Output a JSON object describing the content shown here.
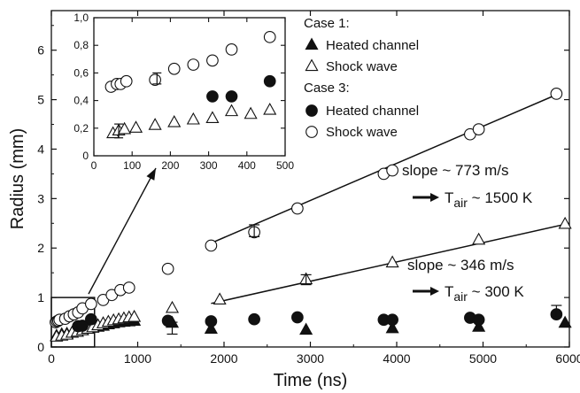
{
  "chart_data": {
    "type": "scatter",
    "xlabel": "Time (ns)",
    "ylabel": "Radius (mm)",
    "xlim": [
      0,
      6000
    ],
    "ylim": [
      0,
      6.8
    ],
    "xticks": [
      "0",
      "1000",
      "2000",
      "3000",
      "4000",
      "5000",
      "6000"
    ],
    "yticks": [
      "0",
      "1",
      "2",
      "3",
      "4",
      "5",
      "6"
    ],
    "grid": false,
    "legend_placement": "top-right",
    "legend": {
      "case1_title": "Case 1:",
      "case3_title": "Case 3:"
    },
    "series": [
      {
        "name": "Heated channel",
        "group": "Case 1:",
        "marker": "filled-triangle",
        "x": [
          60,
          120,
          180,
          240,
          300,
          360,
          420,
          480,
          540,
          600,
          660,
          720,
          780,
          840,
          900,
          960,
          1400,
          1850,
          2950,
          3950,
          4950,
          5950
        ],
        "y": [
          0.22,
          0.25,
          0.26,
          0.28,
          0.3,
          0.33,
          0.36,
          0.38,
          0.4,
          0.42,
          0.45,
          0.47,
          0.49,
          0.5,
          0.51,
          0.52,
          0.48,
          0.36,
          0.34,
          0.37,
          0.4,
          0.48
        ],
        "error_bars": [
          {
            "x": 1400,
            "y": 0.38,
            "err": 0.12
          }
        ]
      },
      {
        "name": "Shock wave",
        "group": "Case 1:",
        "marker": "open-triangle",
        "x": [
          60,
          120,
          180,
          240,
          300,
          360,
          420,
          480,
          540,
          600,
          660,
          720,
          780,
          840,
          900,
          960,
          1400,
          1950,
          2950,
          3950,
          4950,
          5950
        ],
        "y": [
          0.2,
          0.22,
          0.24,
          0.28,
          0.3,
          0.33,
          0.36,
          0.39,
          0.43,
          0.47,
          0.5,
          0.53,
          0.55,
          0.57,
          0.59,
          0.6,
          0.78,
          0.95,
          1.36,
          1.7,
          2.16,
          2.48
        ],
        "error_bars": [
          {
            "x": 2950,
            "y": 1.36,
            "err": 0.1
          }
        ]
      },
      {
        "name": "Heated channel",
        "group": "Case 3:",
        "marker": "filled-circle",
        "x": [
          310,
          360,
          460,
          1350,
          1850,
          2350,
          2850,
          3850,
          3950,
          4850,
          4950,
          5850
        ],
        "y": [
          0.42,
          0.43,
          0.56,
          0.53,
          0.52,
          0.56,
          0.6,
          0.55,
          0.55,
          0.59,
          0.55,
          0.66
        ],
        "error_bars": [
          {
            "x": 5850,
            "y": 0.72,
            "err": 0.12
          }
        ]
      },
      {
        "name": "Shock wave",
        "group": "Case 3:",
        "marker": "open-circle",
        "x": [
          50,
          65,
          80,
          95,
          160,
          210,
          260,
          310,
          360,
          460,
          600,
          700,
          800,
          900,
          1350,
          1850,
          2350,
          2850,
          3850,
          3950,
          4850,
          4950,
          5850
        ],
        "y": [
          0.5,
          0.52,
          0.53,
          0.55,
          0.57,
          0.62,
          0.66,
          0.7,
          0.78,
          0.87,
          0.95,
          1.05,
          1.15,
          1.2,
          1.58,
          2.05,
          2.32,
          2.8,
          3.5,
          3.57,
          4.3,
          4.4,
          5.12
        ],
        "error_bars": [
          {
            "x": 2350,
            "y": 2.35,
            "err": 0.12
          }
        ]
      }
    ],
    "fit_lines": [
      {
        "x": [
          1850,
          5850
        ],
        "y": [
          2.1,
          5.1
        ]
      },
      {
        "x": [
          1850,
          6000
        ],
        "y": [
          0.88,
          2.5
        ]
      }
    ],
    "annotations": {
      "slope_upper": "slope ~ 773 m/s",
      "slope_lower": "slope ~ 346 m/s",
      "t_sub": "air",
      "t_var": "T",
      "t_upper_value": " ~ 1500 K",
      "t_lower_value": " ~ 300 K"
    },
    "inset": {
      "xlim": [
        0,
        500
      ],
      "ylim": [
        0,
        1.0
      ],
      "xticks": [
        "0",
        "100",
        "200",
        "300",
        "400",
        "500"
      ],
      "yticks": [
        "0",
        "0,2",
        "0,4",
        "0,6",
        "0,8",
        "1,0"
      ],
      "series": [
        {
          "name": "Shock wave",
          "group": "Case 1:",
          "marker": "open-triangle",
          "x": [
            50,
            65,
            80,
            110,
            160,
            210,
            260,
            310,
            360,
            410,
            460
          ],
          "y": [
            0.16,
            0.18,
            0.19,
            0.2,
            0.22,
            0.24,
            0.26,
            0.27,
            0.32,
            0.3,
            0.33
          ],
          "error_bars": [
            {
              "x": 65,
              "y": 0.18,
              "err": 0.05
            }
          ]
        },
        {
          "name": "Heated channel",
          "group": "Case 3:",
          "marker": "filled-circle",
          "x": [
            310,
            360,
            460
          ],
          "y": [
            0.43,
            0.43,
            0.54
          ],
          "error_bars": []
        },
        {
          "name": "Shock wave",
          "group": "Case 3:",
          "marker": "open-circle",
          "x": [
            45,
            60,
            70,
            85,
            160,
            210,
            260,
            310,
            360,
            460
          ],
          "y": [
            0.5,
            0.52,
            0.52,
            0.54,
            0.55,
            0.63,
            0.66,
            0.69,
            0.77,
            0.86
          ],
          "error_bars": [
            {
              "x": 165,
              "y": 0.56,
              "err": 0.04
            }
          ]
        }
      ]
    }
  }
}
